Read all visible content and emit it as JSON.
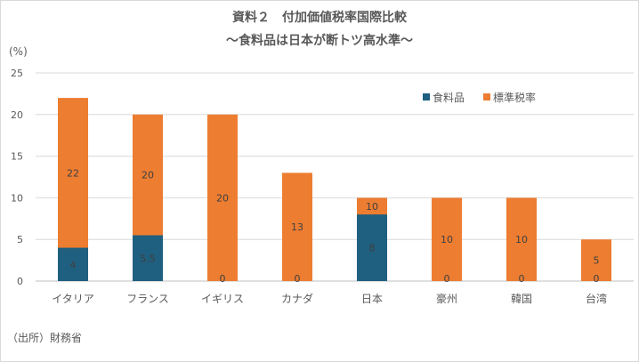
{
  "chart_data": {
    "type": "bar",
    "title": "資料２　付加価値税率国際比較",
    "subtitle": "～食料品は日本が断トツ高水準～",
    "ylabel": "(%)",
    "xlabel": "",
    "ylim": [
      0,
      25
    ],
    "yticks": [
      0,
      5,
      10,
      15,
      20,
      25
    ],
    "grid": true,
    "legend_position": "top-right",
    "categories": [
      "イタリア",
      "フランス",
      "イギリス",
      "カナダ",
      "日本",
      "豪州",
      "韓国",
      "台湾"
    ],
    "series": [
      {
        "name": "食料品",
        "color": "#1f5f7f",
        "values": [
          4,
          5.5,
          0,
          0,
          8,
          0,
          0,
          0
        ]
      },
      {
        "name": "標準税率",
        "color": "#ed7d31",
        "values": [
          22,
          20,
          20,
          13,
          10,
          10,
          10,
          5
        ]
      }
    ],
    "bar_mode": "overlap",
    "source": "（出所）財務省"
  }
}
